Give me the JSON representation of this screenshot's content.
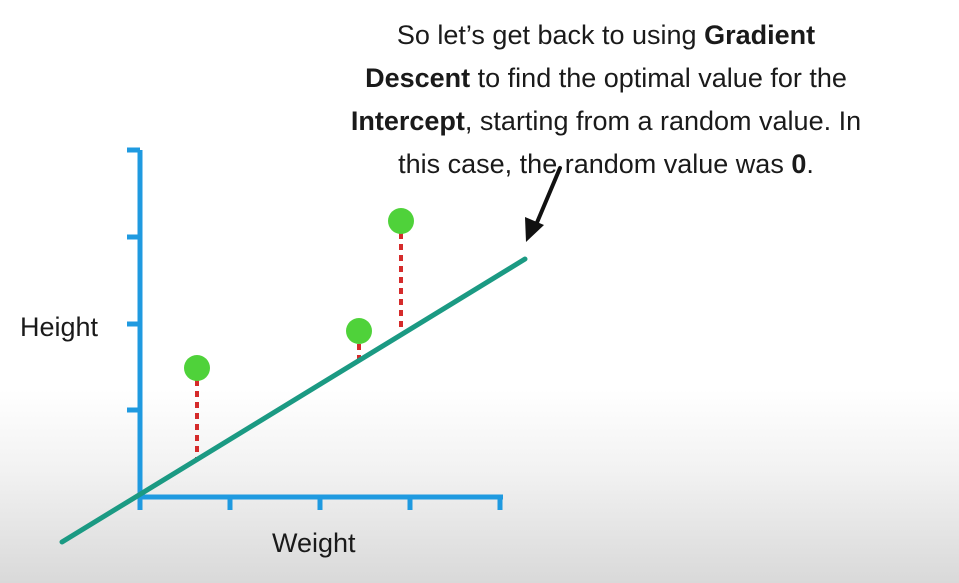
{
  "caption": {
    "l1_a": "So let’s get back to using ",
    "l1_b": "Gradient",
    "l2_a": "Descent",
    "l2_b": " to find the optimal value for the",
    "l3_a": "Intercept",
    "l3_b": ", starting from a random value. In",
    "l4_a": "this case, the random value was ",
    "l4_b": "0",
    "l4_c": "."
  },
  "axes": {
    "xlabel": "Weight",
    "ylabel": "Height"
  },
  "colors": {
    "axis": "#1f9ae0",
    "line": "#1b9a83",
    "point": "#4fd23a",
    "residual": "#d52b2b",
    "text": "#1a1a1a"
  }
}
